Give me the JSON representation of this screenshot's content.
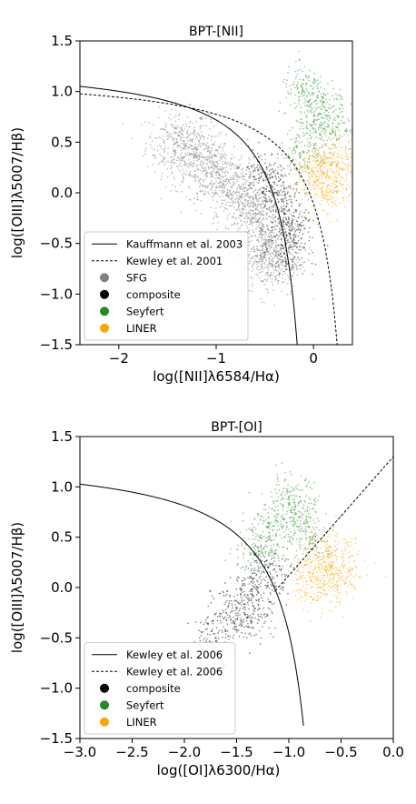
{
  "chart_data": [
    {
      "type": "scatter",
      "title": "BPT-[NII]",
      "xlabel": "log([NII]λ6584/Hα)",
      "ylabel": "log([OIII]λ5007/Hβ)",
      "xlim": [
        -2.4,
        0.4
      ],
      "ylim": [
        -1.5,
        1.5
      ],
      "xticks": [
        -2,
        -1,
        0
      ],
      "xticklabels": [
        "−2",
        "−1",
        "0"
      ],
      "yticks": [
        -1.5,
        -1.0,
        -0.5,
        0.0,
        0.5,
        1.0,
        1.5
      ],
      "yticklabels": [
        "−1.5",
        "−1.0",
        "−0.5",
        "0.0",
        "0.5",
        "1.0",
        "1.5"
      ],
      "grid": false,
      "legend_position": "lower-left",
      "legend": [
        {
          "label": "Kauffmann et al. 2003",
          "kind": "line",
          "style": "solid"
        },
        {
          "label": "Kewley et al. 2001",
          "kind": "line",
          "style": "dashed"
        },
        {
          "label": "SFG",
          "kind": "marker",
          "color": "#808080"
        },
        {
          "label": "composite",
          "kind": "marker",
          "color": "#000000"
        },
        {
          "label": "Seyfert",
          "kind": "marker",
          "color": "#228B22"
        },
        {
          "label": "LINER",
          "kind": "marker",
          "color": "#FFA500"
        }
      ],
      "curves": [
        {
          "name": "Kauffmann et al. 2003",
          "style": "solid",
          "formula": "0.61/(x-0.05)+1.3",
          "x_range": [
            -2.4,
            -0.13
          ]
        },
        {
          "name": "Kewley et al. 2001",
          "style": "dashed",
          "formula": "0.61/(x-0.47)+1.19",
          "x_range": [
            -2.4,
            0.26
          ]
        }
      ],
      "point_clouds": [
        {
          "name": "SFG",
          "color": "#808080",
          "approx_points": [
            [
              -1.4,
              0.5
            ],
            [
              -1.2,
              0.35
            ],
            [
              -1.0,
              0.2
            ],
            [
              -0.8,
              0.0
            ],
            [
              -0.6,
              -0.2
            ],
            [
              -0.5,
              -0.5
            ],
            [
              -0.45,
              -0.7
            ]
          ]
        },
        {
          "name": "composite",
          "color": "#000000",
          "approx_points": [
            [
              -0.5,
              0.2
            ],
            [
              -0.4,
              0.0
            ],
            [
              -0.3,
              -0.2
            ],
            [
              -0.25,
              -0.4
            ],
            [
              -0.3,
              -0.6
            ]
          ]
        },
        {
          "name": "Seyfert",
          "color": "#228B22",
          "approx_points": [
            [
              -0.1,
              0.4
            ],
            [
              0.0,
              0.7
            ],
            [
              0.1,
              0.9
            ],
            [
              0.2,
              0.6
            ],
            [
              -0.1,
              1.0
            ]
          ]
        },
        {
          "name": "LINER",
          "color": "#FFA500",
          "approx_points": [
            [
              0.0,
              0.2
            ],
            [
              0.1,
              0.1
            ],
            [
              0.2,
              0.0
            ],
            [
              0.3,
              0.3
            ],
            [
              0.1,
              0.3
            ]
          ]
        }
      ]
    },
    {
      "type": "scatter",
      "title": "BPT-[OI]",
      "xlabel": "log([OI]λ6300/Hα)",
      "ylabel": "log([OIII]λ5007/Hβ)",
      "xlim": [
        -3.0,
        0.0
      ],
      "ylim": [
        -1.5,
        1.5
      ],
      "xticks": [
        -3.0,
        -2.5,
        -2.0,
        -1.5,
        -1.0,
        -0.5,
        0.0
      ],
      "xticklabels": [
        "−3.0",
        "−2.5",
        "−2.0",
        "−1.5",
        "−1.0",
        "−0.5",
        "0.0"
      ],
      "yticks": [
        -1.5,
        -1.0,
        -0.5,
        0.0,
        0.5,
        1.0,
        1.5
      ],
      "yticklabels": [
        "−1.5",
        "−1.0",
        "−0.5",
        "0.0",
        "0.5",
        "1.0",
        "1.5"
      ],
      "grid": false,
      "legend_position": "lower-left",
      "legend": [
        {
          "label": "Kewley et al. 2006",
          "kind": "line",
          "style": "solid"
        },
        {
          "label": "Kewley et al. 2006",
          "kind": "line",
          "style": "dashed"
        },
        {
          "label": "composite",
          "kind": "marker",
          "color": "#000000"
        },
        {
          "label": "Seyfert",
          "kind": "marker",
          "color": "#228B22"
        },
        {
          "label": "LINER",
          "kind": "marker",
          "color": "#FFA500"
        }
      ],
      "curves": [
        {
          "name": "Kewley et al. 2006",
          "style": "solid",
          "formula": "0.73/(x+0.59)+1.33",
          "x_range": [
            -3.0,
            -0.86
          ]
        },
        {
          "name": "Kewley et al. 2006",
          "style": "dashed",
          "formula": "1.18*x+1.30",
          "x_range": [
            -1.13,
            0.0
          ]
        }
      ],
      "point_clouds": [
        {
          "name": "composite",
          "color": "#000000",
          "approx_points": [
            [
              -1.5,
              -0.2
            ],
            [
              -1.3,
              0.0
            ],
            [
              -1.7,
              -0.5
            ],
            [
              -1.4,
              -0.3
            ],
            [
              -1.2,
              0.2
            ]
          ]
        },
        {
          "name": "Seyfert",
          "color": "#228B22",
          "approx_points": [
            [
              -1.2,
              0.6
            ],
            [
              -1.0,
              0.9
            ],
            [
              -0.9,
              0.7
            ],
            [
              -1.3,
              0.4
            ],
            [
              -0.8,
              0.5
            ]
          ]
        },
        {
          "name": "LINER",
          "color": "#FFA500",
          "approx_points": [
            [
              -0.7,
              0.0
            ],
            [
              -0.6,
              0.2
            ],
            [
              -0.5,
              0.1
            ],
            [
              -0.8,
              0.1
            ],
            [
              -0.6,
              0.4
            ]
          ]
        }
      ]
    }
  ]
}
